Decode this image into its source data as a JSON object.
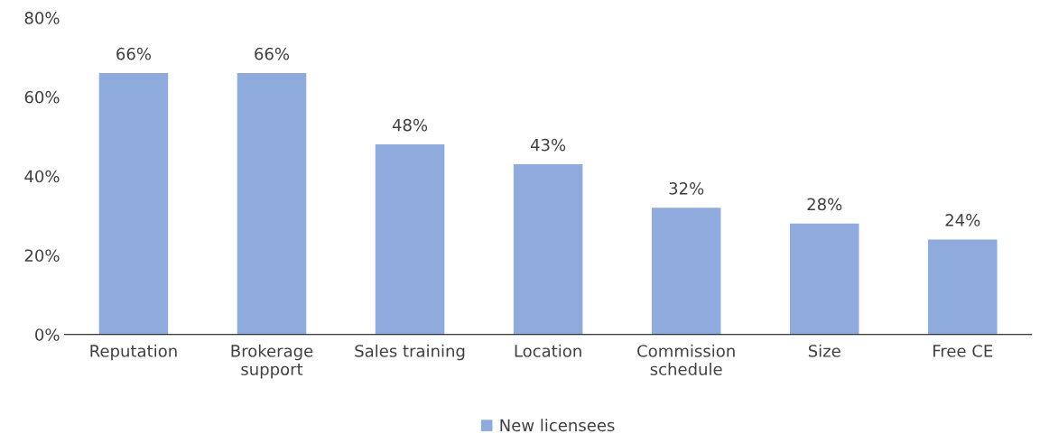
{
  "chart_data": {
    "type": "bar",
    "categories": [
      "Reputation",
      "Brokerage\nsupport",
      "Sales training",
      "Location",
      "Commission\nschedule",
      "Size",
      "Free CE"
    ],
    "series": [
      {
        "name": "New licensees",
        "color": "#8faadc",
        "values": [
          66,
          66,
          48,
          43,
          32,
          28,
          24
        ],
        "value_labels": [
          "66%",
          "66%",
          "48%",
          "43%",
          "32%",
          "28%",
          "24%"
        ]
      }
    ],
    "ylim": [
      0,
      80
    ],
    "yticks": [
      {
        "value": 0,
        "label": "0%"
      },
      {
        "value": 20,
        "label": "20%"
      },
      {
        "value": 40,
        "label": "40%"
      },
      {
        "value": 60,
        "label": "60%"
      },
      {
        "value": 80,
        "label": "80%"
      }
    ],
    "grid": false,
    "legend": "bottom"
  }
}
